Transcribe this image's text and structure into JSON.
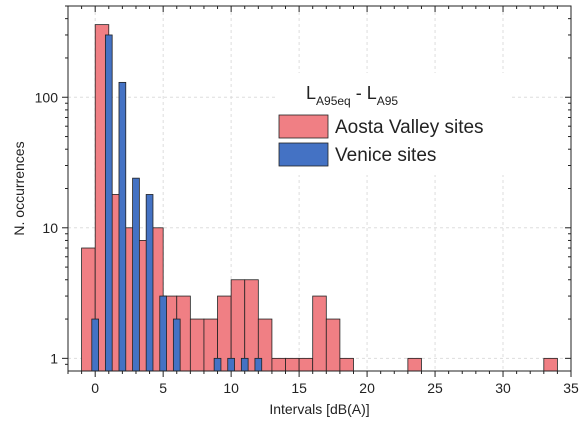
{
  "chart_data": {
    "type": "bar",
    "title": "",
    "xlabel": "Intervals [dB(A)]",
    "ylabel": "N. occurrences",
    "xlim": [
      -2,
      35
    ],
    "ylim": [
      0.8,
      500
    ],
    "yscale": "log",
    "grid": true,
    "xticks": [
      0,
      5,
      10,
      15,
      20,
      25,
      30,
      35
    ],
    "yticks": [
      1,
      10,
      100
    ],
    "legend": {
      "placement": "top-right",
      "title_main": "L",
      "title_sub1": "A95eq",
      "title_mid": " - L",
      "title_sub2": "A95"
    },
    "series": [
      {
        "name": "Aosta Valley sites",
        "color": "#F07F84",
        "bin_width": 1,
        "x": [
          -0.5,
          0.5,
          1.5,
          2.5,
          3.5,
          4.5,
          5.5,
          6.5,
          7.5,
          8.5,
          9.5,
          10.5,
          11.5,
          12.5,
          13.5,
          14.5,
          15.5,
          16.5,
          17.5,
          18.5,
          23.5,
          33.5
        ],
        "values": [
          7,
          360,
          18,
          10,
          8,
          10,
          3,
          3,
          2,
          2,
          3,
          4,
          4,
          2,
          1,
          1,
          1,
          3,
          2,
          1,
          1,
          1
        ]
      },
      {
        "name": "Venice sites",
        "color": "#4472C4",
        "bin_width": 0.5,
        "x": [
          0,
          1,
          2,
          3,
          4,
          5,
          6,
          9,
          10,
          11,
          12
        ],
        "values": [
          2,
          300,
          130,
          24,
          18,
          3,
          2,
          1,
          1,
          1,
          1
        ]
      }
    ]
  }
}
